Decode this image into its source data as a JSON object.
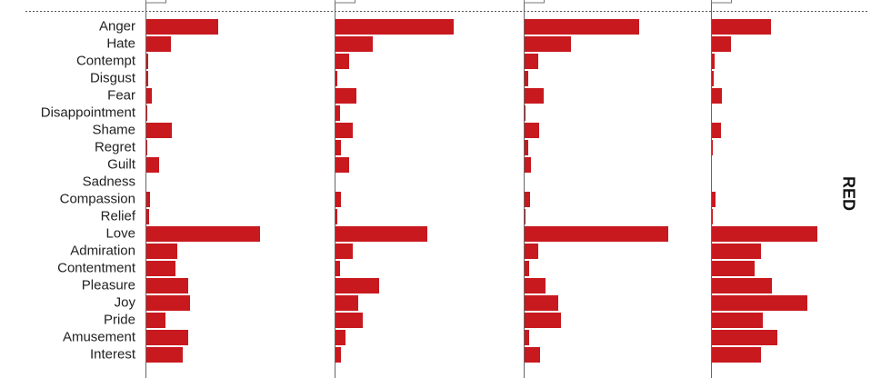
{
  "chart_data": {
    "type": "bar",
    "orientation": "horizontal",
    "group_label": "RED",
    "categories": [
      "Anger",
      "Hate",
      "Contempt",
      "Disgust",
      "Fear",
      "Disappointment",
      "Shame",
      "Regret",
      "Guilt",
      "Sadness",
      "Compassion",
      "Relief",
      "Love",
      "Admiration",
      "Contentment",
      "Pleasure",
      "Joy",
      "Pride",
      "Amusement",
      "Interest"
    ],
    "panels": [
      {
        "values": [
          79,
          27,
          2,
          2,
          6,
          1,
          28,
          1,
          14,
          0,
          4,
          3,
          125,
          34,
          32,
          46,
          48,
          21,
          46,
          40
        ]
      },
      {
        "values": [
          130,
          41,
          15,
          2,
          23,
          5,
          19,
          6,
          15,
          0,
          6,
          2,
          101,
          19,
          5,
          48,
          25,
          30,
          11,
          6
        ]
      },
      {
        "values": [
          126,
          51,
          15,
          4,
          21,
          1,
          16,
          4,
          7,
          0,
          6,
          1,
          158,
          15,
          5,
          23,
          37,
          40,
          5,
          17
        ]
      },
      {
        "values": [
          65,
          21,
          3,
          2,
          11,
          0,
          10,
          1,
          0,
          0,
          4,
          1,
          116,
          54,
          47,
          66,
          105,
          56,
          72,
          54
        ]
      }
    ],
    "colors": {
      "bar": "#c8191f",
      "axis": "#666666",
      "dotted_line": "#555555"
    }
  }
}
